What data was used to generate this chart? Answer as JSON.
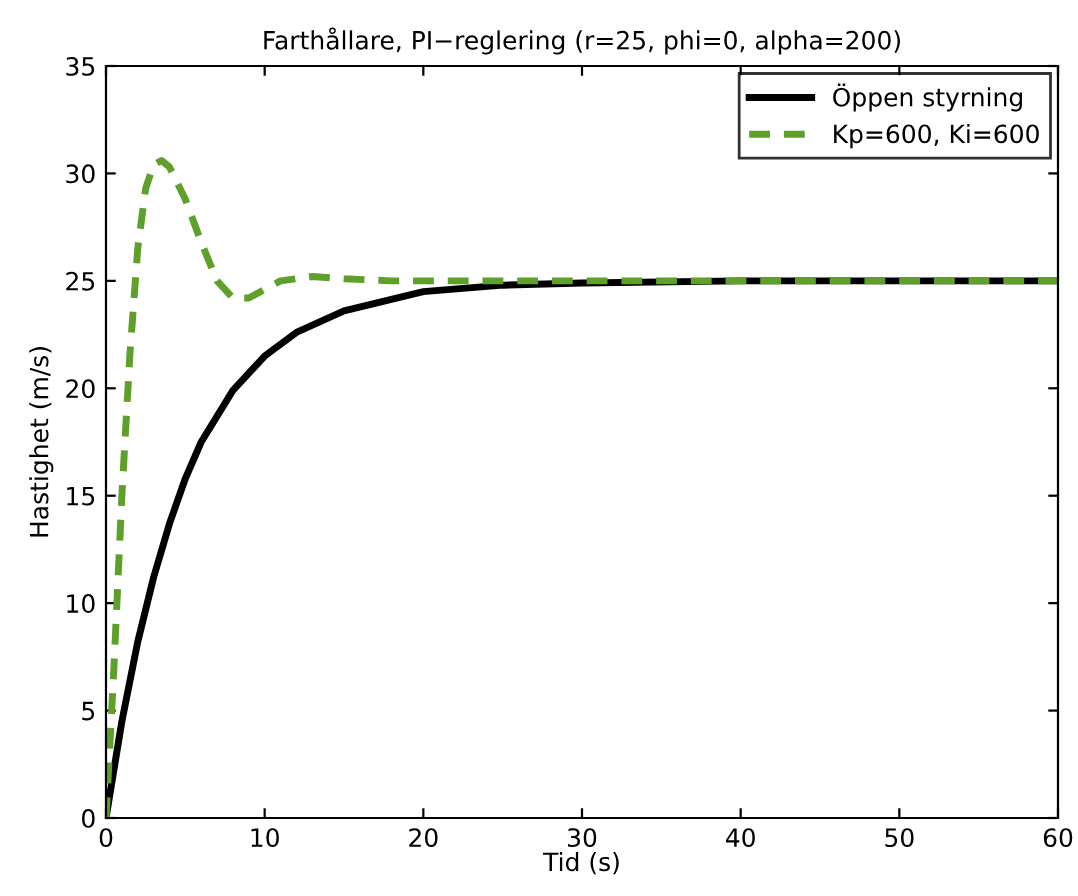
{
  "chart_data": {
    "type": "line",
    "title": "Farthållare, PI−reglering (r=25, phi=0, alpha=200)",
    "xlabel": "Tid (s)",
    "ylabel": "Hastighet (m/s)",
    "xlim": [
      0,
      60
    ],
    "ylim": [
      0,
      35
    ],
    "xticks": [
      0,
      10,
      20,
      30,
      40,
      50,
      60
    ],
    "yticks": [
      0,
      5,
      10,
      15,
      20,
      25,
      30,
      35
    ],
    "grid": false,
    "legend": "top right",
    "series": [
      {
        "name": "Öppen styrning",
        "color": "#000000",
        "line_style": "solid",
        "x": [
          0,
          1,
          2,
          3,
          4,
          5,
          6,
          8,
          10,
          12,
          15,
          20,
          25,
          30,
          40,
          60
        ],
        "values": [
          0,
          4.5,
          8.2,
          11.2,
          13.7,
          15.8,
          17.5,
          19.9,
          21.5,
          22.6,
          23.6,
          24.5,
          24.8,
          24.9,
          25,
          25
        ]
      },
      {
        "name": "Kp=600, Ki=600",
        "color": "#5fa02a",
        "line_style": "dashed",
        "x": [
          0,
          0.5,
          1,
          1.5,
          2,
          2.5,
          3,
          3.5,
          4,
          5,
          6,
          7,
          8,
          9,
          10,
          11,
          12,
          13,
          15,
          18,
          60
        ],
        "values": [
          0,
          7,
          15,
          21.5,
          26.5,
          29.3,
          30.4,
          30.6,
          30.3,
          28.8,
          26.8,
          25,
          24.2,
          24.2,
          24.6,
          25,
          25.1,
          25.2,
          25.1,
          25,
          25
        ]
      }
    ]
  }
}
